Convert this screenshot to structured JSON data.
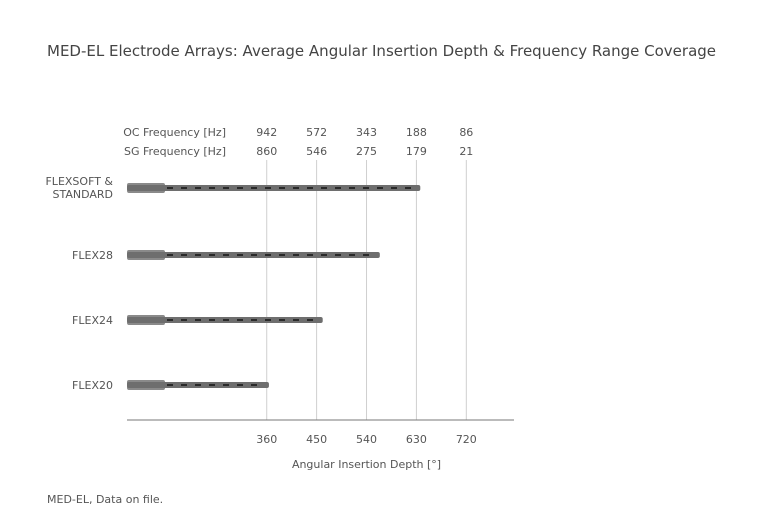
{
  "chart_data": {
    "type": "bar",
    "orientation": "horizontal",
    "title": "MED-EL Electrode Arrays: Average Angular Insertion Depth & Frequency Range Coverage",
    "categories": [
      "FLEXSOFT & STANDARD",
      "FLEX28",
      "FLEX24",
      "FLEX20"
    ],
    "values": [
      637,
      564,
      461,
      364
    ],
    "color": "#6e6e6e",
    "xlabel": "Angular Insertion Depth [°]",
    "xlim": [
      108,
      806
    ],
    "xticks": [
      360,
      450,
      540,
      630,
      720
    ],
    "grid": true,
    "top_rows": [
      {
        "name": "OC Frequency [Hz]",
        "color": "#555555",
        "values": [
          942,
          572,
          343,
          188,
          86
        ]
      },
      {
        "name": "SG Frequency [Hz]",
        "color": "#a0a0a0",
        "values": [
          860,
          546,
          275,
          179,
          21
        ]
      }
    ],
    "footnote": "MED-EL, Data on file."
  }
}
